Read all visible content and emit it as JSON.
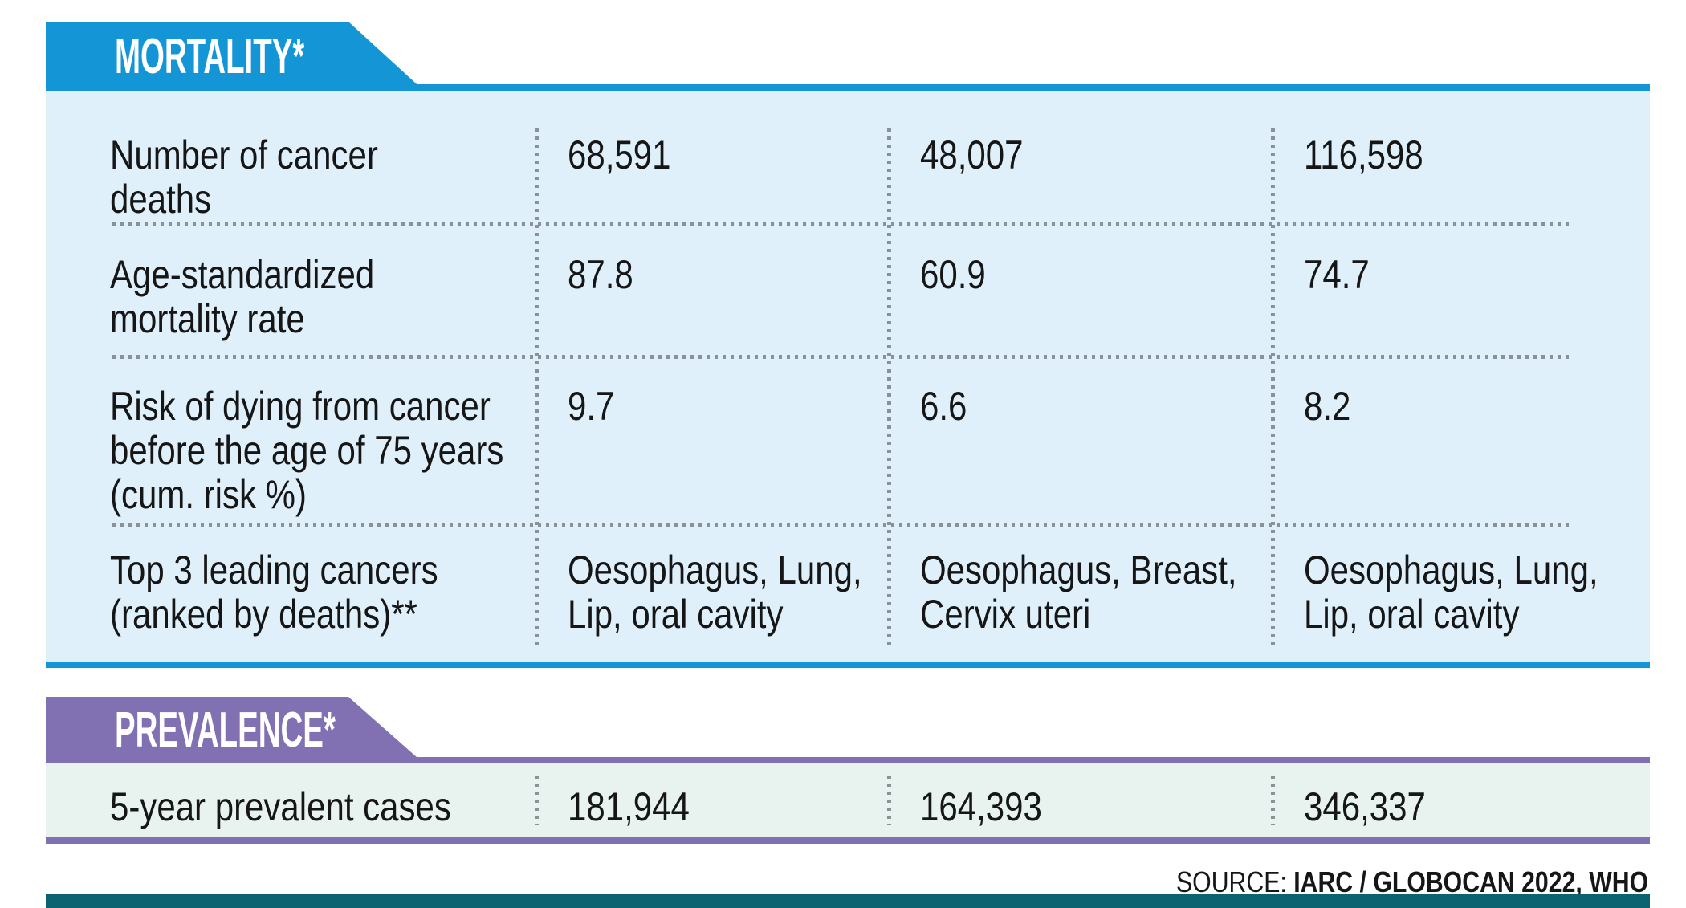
{
  "colors": {
    "blue": "#1495d6",
    "blue_bg": "#dff0fb",
    "purple": "#8170b2",
    "mint_bg": "#e8f2ef",
    "teal": "#0b6270",
    "dot": "#8a9298",
    "ink": "#161616"
  },
  "mortality": {
    "title": "MORTALITY*",
    "rows": [
      {
        "label": "Number of cancer\ndeaths",
        "values": [
          "68,591",
          "48,007",
          "116,598"
        ]
      },
      {
        "label": "Age-standardized\nmortality rate",
        "values": [
          "87.8",
          "60.9",
          "74.7"
        ]
      },
      {
        "label": "Risk of dying from cancer\nbefore the age of 75 years\n(cum. risk %)",
        "values": [
          "9.7",
          "6.6",
          "8.2"
        ]
      },
      {
        "label": "Top 3 leading cancers\n(ranked by deaths)**",
        "values": [
          "Oesophagus, Lung,\nLip, oral cavity",
          "Oesophagus, Breast,\nCervix uteri",
          "Oesophagus, Lung,\nLip, oral cavity"
        ]
      }
    ]
  },
  "prevalence": {
    "title": "PREVALENCE*",
    "rows": [
      {
        "label": "5-year prevalent cases",
        "values": [
          "181,944",
          "164,393",
          "346,337"
        ]
      }
    ]
  },
  "source": {
    "prefix": "SOURCE: ",
    "bold": "IARC / GLOBOCAN 2022, WHO"
  },
  "chart_data": {
    "type": "table",
    "sections": [
      {
        "title": "MORTALITY*",
        "rows": [
          {
            "metric": "Number of cancer deaths",
            "values": [
              "68,591",
              "48,007",
              "116,598"
            ]
          },
          {
            "metric": "Age-standardized mortality rate",
            "values": [
              "87.8",
              "60.9",
              "74.7"
            ]
          },
          {
            "metric": "Risk of dying from cancer before the age of 75 years (cum. risk %)",
            "values": [
              "9.7",
              "6.6",
              "8.2"
            ]
          },
          {
            "metric": "Top 3 leading cancers (ranked by deaths)**",
            "values": [
              "Oesophagus, Lung, Lip, oral cavity",
              "Oesophagus, Breast, Cervix uteri",
              "Oesophagus, Lung, Lip, oral cavity"
            ]
          }
        ]
      },
      {
        "title": "PREVALENCE*",
        "rows": [
          {
            "metric": "5-year prevalent cases",
            "values": [
              "181,944",
              "164,393",
              "346,337"
            ]
          }
        ]
      }
    ],
    "source": "SOURCE: IARC / GLOBOCAN 2022, WHO"
  }
}
